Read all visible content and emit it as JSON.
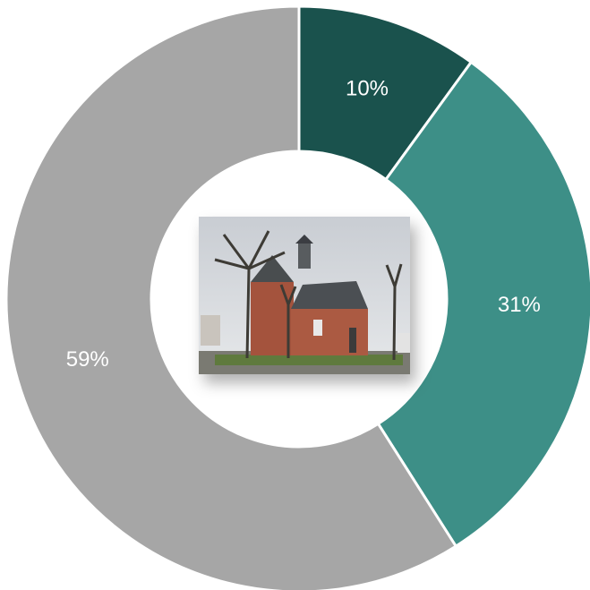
{
  "chart_data": {
    "type": "pie",
    "donut": true,
    "values": [
      10,
      31,
      59
    ],
    "value_labels": [
      "10%",
      "31%",
      "59%"
    ],
    "colors": [
      "#1a524d",
      "#3d8f87",
      "#a6a6a6"
    ]
  }
}
